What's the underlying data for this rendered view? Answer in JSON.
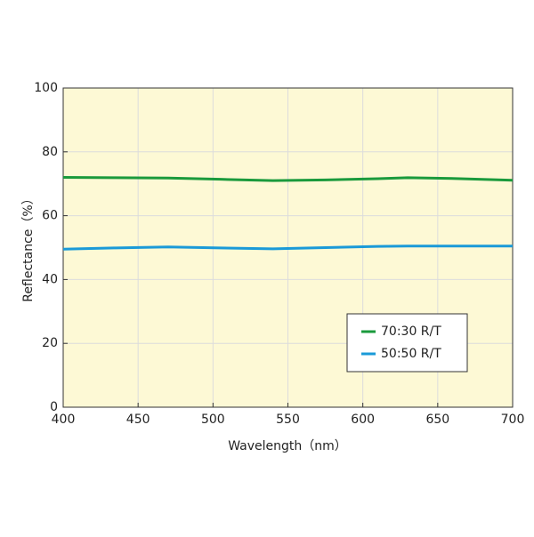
{
  "chart_data": {
    "type": "line",
    "xlabel": "Wavelength（nm）",
    "ylabel": "Reflectance（%）",
    "x": [
      400,
      435,
      470,
      505,
      540,
      575,
      610,
      630,
      665,
      700
    ],
    "series": [
      {
        "name": "70:30 R/T",
        "color": "#1a9a3c",
        "values": [
          72,
          71.9,
          71.8,
          71.4,
          71,
          71.2,
          71.6,
          71.9,
          71.6,
          71.1
        ]
      },
      {
        "name": "50:50 R/T",
        "color": "#1a9ad8",
        "values": [
          49.5,
          49.9,
          50.2,
          49.9,
          49.6,
          50,
          50.4,
          50.5,
          50.5,
          50.5
        ]
      }
    ],
    "xlim": [
      400,
      700
    ],
    "xticks": [
      400,
      450,
      500,
      550,
      600,
      650,
      700
    ],
    "ylim": [
      0,
      100
    ],
    "yticks": [
      0,
      20,
      40,
      60,
      80,
      100
    ],
    "grid": true,
    "legend": "lower right",
    "background": "#fdf9d5"
  }
}
